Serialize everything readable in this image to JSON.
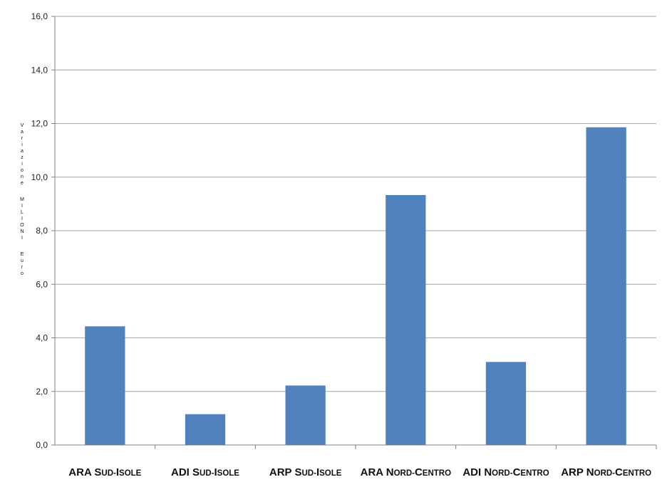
{
  "chart_data": {
    "type": "bar",
    "title": "",
    "ylabel": "Variazione MILIONI Euro",
    "xlabel": "",
    "ylim": [
      0,
      16
    ],
    "yticks": [
      "0,0",
      "2,0",
      "4,0",
      "6,0",
      "8,0",
      "10,0",
      "12,0",
      "14,0",
      "16,0"
    ],
    "ytick_values": [
      0,
      2,
      4,
      6,
      8,
      10,
      12,
      14,
      16
    ],
    "categories": [
      "ARA Sud-Isole",
      "ADI Sud-Isole",
      "ARP Sud-Isole",
      "ARA Nord-Centro",
      "ADI Nord-Centro",
      "ARP Nord-Centro"
    ],
    "category_labels": [
      {
        "code": "ARA",
        "cap": "S",
        "rest": "UD-",
        "cap2": "I",
        "rest2": "SOLE"
      },
      {
        "code": "ADI",
        "cap": "S",
        "rest": "UD-",
        "cap2": "I",
        "rest2": "SOLE"
      },
      {
        "code": "ARP",
        "cap": "S",
        "rest": "UD-",
        "cap2": "I",
        "rest2": "SOLE"
      },
      {
        "code": "ARA",
        "cap": "N",
        "rest": "ORD-",
        "cap2": "C",
        "rest2": "ENTRO"
      },
      {
        "code": "ADI",
        "cap": "N",
        "rest": "ORD-",
        "cap2": "C",
        "rest2": "ENTRO"
      },
      {
        "code": "ARP",
        "cap": "N",
        "rest": "ORD-",
        "cap2": "C",
        "rest2": "ENTRO"
      }
    ],
    "values": [
      4.43,
      1.15,
      2.22,
      9.33,
      3.1,
      11.86
    ],
    "bar_color": "#4f81bd",
    "grid": true,
    "grid_color": "#a6a6a6",
    "legend": "none"
  }
}
